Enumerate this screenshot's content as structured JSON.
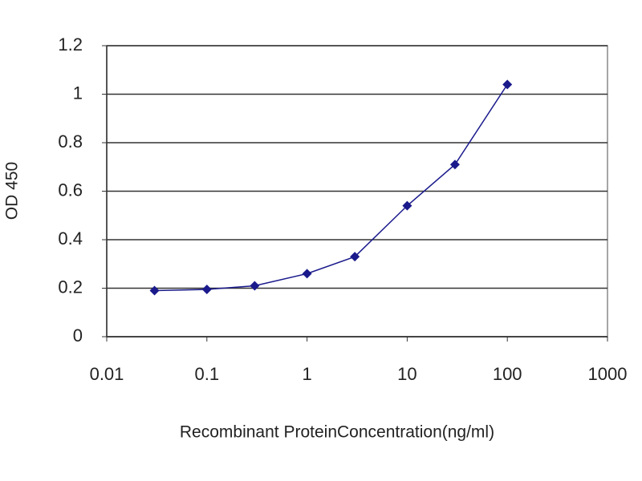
{
  "chart_data": {
    "type": "line",
    "x_label": "Recombinant ProteinConcentration(ng/ml)",
    "y_label": "OD 450",
    "x": [
      0.03,
      0.1,
      0.3,
      1,
      3,
      10,
      30,
      100
    ],
    "series": [
      {
        "color": "#1a1a8c",
        "values": [
          0.19,
          0.195,
          0.21,
          0.26,
          0.33,
          0.54,
          0.71,
          1.04
        ]
      }
    ],
    "xscale": "log",
    "xlim": [
      0.01,
      1000
    ],
    "xticks": [
      0.01,
      0.1,
      1,
      10,
      100,
      1000
    ],
    "ylim": [
      0,
      1.2
    ],
    "yticks": [
      0,
      0.2,
      0.4,
      0.6,
      0.8,
      1,
      1.2
    ],
    "grid": true
  }
}
